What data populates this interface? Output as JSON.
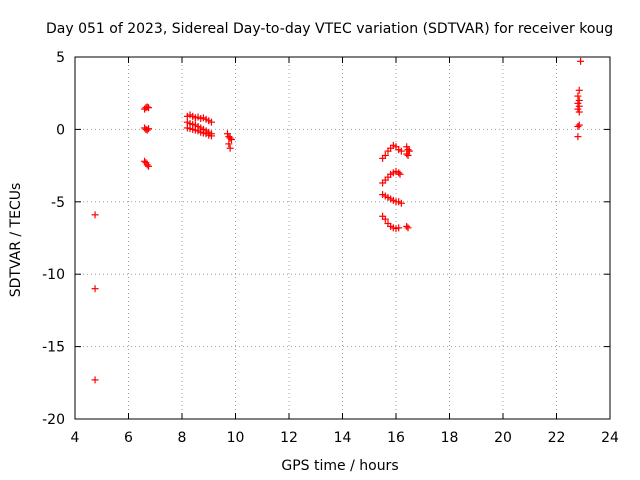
{
  "chart_data": {
    "type": "scatter",
    "title": "Day 051 of 2023, Sidereal Day-to-day VTEC variation (SDTVAR) for receiver koug",
    "xlabel": "GPS time / hours",
    "ylabel": "SDTVAR / TECUs",
    "xlim": [
      4,
      24
    ],
    "ylim": [
      -20,
      5
    ],
    "xticks": [
      4,
      6,
      8,
      10,
      12,
      14,
      16,
      18,
      20,
      22,
      24
    ],
    "yticks": [
      5,
      0,
      -5,
      -10,
      -15,
      -20
    ],
    "grid": true,
    "marker": "+",
    "color": "#ff0000",
    "series": [
      {
        "name": "SDTVAR",
        "points": [
          [
            4.75,
            -5.9
          ],
          [
            4.75,
            -11.0
          ],
          [
            4.75,
            -17.3
          ],
          [
            6.6,
            1.4
          ],
          [
            6.65,
            1.5
          ],
          [
            6.7,
            1.55
          ],
          [
            6.75,
            1.5
          ],
          [
            6.6,
            0.1
          ],
          [
            6.65,
            0.0
          ],
          [
            6.7,
            -0.05
          ],
          [
            6.75,
            0.05
          ],
          [
            6.6,
            -2.2
          ],
          [
            6.65,
            -2.3
          ],
          [
            6.7,
            -2.45
          ],
          [
            6.75,
            -2.55
          ],
          [
            8.2,
            0.9
          ],
          [
            8.3,
            1.0
          ],
          [
            8.4,
            0.9
          ],
          [
            8.5,
            0.8
          ],
          [
            8.6,
            0.85
          ],
          [
            8.7,
            0.75
          ],
          [
            8.8,
            0.8
          ],
          [
            8.9,
            0.7
          ],
          [
            9.0,
            0.6
          ],
          [
            9.1,
            0.5
          ],
          [
            8.2,
            0.5
          ],
          [
            8.3,
            0.4
          ],
          [
            8.4,
            0.35
          ],
          [
            8.5,
            0.3
          ],
          [
            8.6,
            0.2
          ],
          [
            8.7,
            0.1
          ],
          [
            8.8,
            0.0
          ],
          [
            8.9,
            -0.1
          ],
          [
            9.0,
            -0.2
          ],
          [
            9.1,
            -0.3
          ],
          [
            8.2,
            0.1
          ],
          [
            8.3,
            0.05
          ],
          [
            8.4,
            0.0
          ],
          [
            8.5,
            -0.05
          ],
          [
            8.6,
            -0.1
          ],
          [
            8.7,
            -0.2
          ],
          [
            8.8,
            -0.25
          ],
          [
            8.9,
            -0.3
          ],
          [
            9.0,
            -0.4
          ],
          [
            9.1,
            -0.45
          ],
          [
            9.7,
            -0.3
          ],
          [
            9.75,
            -0.5
          ],
          [
            9.8,
            -0.6
          ],
          [
            9.85,
            -0.7
          ],
          [
            9.75,
            -1.0
          ],
          [
            9.8,
            -1.3
          ],
          [
            15.5,
            -2.0
          ],
          [
            15.6,
            -1.8
          ],
          [
            15.7,
            -1.5
          ],
          [
            15.8,
            -1.3
          ],
          [
            15.9,
            -1.1
          ],
          [
            16.0,
            -1.2
          ],
          [
            16.1,
            -1.4
          ],
          [
            16.2,
            -1.5
          ],
          [
            15.5,
            -3.7
          ],
          [
            15.6,
            -3.5
          ],
          [
            15.7,
            -3.3
          ],
          [
            15.8,
            -3.1
          ],
          [
            15.9,
            -3.0
          ],
          [
            16.0,
            -2.9
          ],
          [
            16.1,
            -3.0
          ],
          [
            16.15,
            -3.1
          ],
          [
            15.5,
            -4.5
          ],
          [
            15.6,
            -4.6
          ],
          [
            15.7,
            -4.7
          ],
          [
            15.8,
            -4.8
          ],
          [
            15.9,
            -4.9
          ],
          [
            16.0,
            -5.0
          ],
          [
            16.1,
            -5.0
          ],
          [
            16.2,
            -5.1
          ],
          [
            15.5,
            -6.0
          ],
          [
            15.6,
            -6.2
          ],
          [
            15.7,
            -6.5
          ],
          [
            15.8,
            -6.7
          ],
          [
            15.9,
            -6.8
          ],
          [
            16.0,
            -6.85
          ],
          [
            16.1,
            -6.8
          ],
          [
            16.4,
            -1.2
          ],
          [
            16.45,
            -1.4
          ],
          [
            16.5,
            -1.5
          ],
          [
            16.4,
            -1.7
          ],
          [
            16.45,
            -1.8
          ],
          [
            16.4,
            -6.7
          ],
          [
            16.45,
            -6.8
          ],
          [
            22.9,
            4.7
          ],
          [
            22.85,
            2.7
          ],
          [
            22.8,
            2.3
          ],
          [
            22.85,
            2.0
          ],
          [
            22.8,
            1.8
          ],
          [
            22.85,
            1.6
          ],
          [
            22.8,
            1.4
          ],
          [
            22.85,
            1.2
          ],
          [
            22.8,
            0.2
          ],
          [
            22.85,
            0.3
          ],
          [
            22.8,
            -0.5
          ]
        ]
      }
    ]
  }
}
